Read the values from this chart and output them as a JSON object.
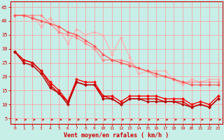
{
  "xlabel": "Vent moyen/en rafales ( km/h )",
  "xlim": [
    -0.5,
    23.5
  ],
  "ylim": [
    3,
    47
  ],
  "xticks": [
    0,
    1,
    2,
    3,
    4,
    5,
    6,
    7,
    8,
    9,
    10,
    11,
    12,
    13,
    14,
    15,
    16,
    17,
    18,
    19,
    20,
    21,
    22,
    23
  ],
  "yticks": [
    5,
    10,
    15,
    20,
    25,
    30,
    35,
    40,
    45
  ],
  "bg_color": "#c8eee8",
  "grid_color": "#ff9999",
  "series": [
    {
      "color": "#ffaaaa",
      "ms": 2.5,
      "lw": 0.8,
      "data_x": [
        0,
        1,
        2,
        3,
        4,
        5,
        6,
        7,
        8,
        9,
        10,
        11,
        12,
        13,
        14,
        15,
        16,
        17,
        18,
        19,
        20,
        21,
        22,
        23
      ],
      "data_y": [
        42,
        42,
        42,
        38,
        41,
        37,
        32,
        37,
        35,
        36,
        35,
        28,
        34,
        27,
        21,
        22,
        22,
        22,
        19,
        17,
        19,
        18,
        19,
        19
      ]
    },
    {
      "color": "#ff8888",
      "ms": 2.5,
      "lw": 0.8,
      "data_x": [
        0,
        1,
        2,
        3,
        4,
        5,
        6,
        7,
        8,
        9,
        10,
        11,
        12,
        13,
        14,
        15,
        16,
        17,
        18,
        19,
        20,
        21,
        22,
        23
      ],
      "data_y": [
        42,
        42,
        42,
        42,
        39,
        36,
        35,
        34,
        32,
        30,
        26,
        26,
        26,
        25,
        23,
        22,
        20,
        20,
        19,
        18,
        18,
        18,
        18,
        18
      ]
    },
    {
      "color": "#ff5555",
      "ms": 2.5,
      "lw": 0.9,
      "data_x": [
        0,
        1,
        2,
        3,
        4,
        5,
        6,
        7,
        8,
        9,
        10,
        11,
        12,
        13,
        14,
        15,
        16,
        17,
        18,
        19,
        20,
        21,
        22,
        23
      ],
      "data_y": [
        42,
        42,
        41,
        40,
        39,
        38,
        36,
        35,
        33,
        31,
        28,
        26,
        25,
        24,
        23,
        22,
        21,
        20,
        19,
        18,
        17,
        17,
        17,
        17
      ]
    },
    {
      "color": "#ff0000",
      "ms": 2.5,
      "lw": 1.0,
      "data_x": [
        0,
        1,
        2,
        3,
        4,
        5,
        6,
        7,
        8,
        9,
        10,
        11,
        12,
        13,
        14,
        15,
        16,
        17,
        18,
        19,
        20,
        21,
        22,
        23
      ],
      "data_y": [
        29,
        26,
        25,
        22,
        18,
        15,
        11,
        19,
        18,
        18,
        13,
        13,
        11,
        13,
        13,
        13,
        13,
        12,
        12,
        12,
        10,
        11,
        10,
        13
      ]
    },
    {
      "color": "#dd0000",
      "ms": 2.5,
      "lw": 1.0,
      "data_x": [
        0,
        1,
        2,
        3,
        4,
        5,
        6,
        7,
        8,
        9,
        10,
        11,
        12,
        13,
        14,
        15,
        16,
        17,
        18,
        19,
        20,
        21,
        22,
        23
      ],
      "data_y": [
        29,
        26,
        25,
        22,
        17,
        14,
        11,
        18,
        17,
        17,
        13,
        12,
        10,
        12,
        12,
        12,
        12,
        11,
        11,
        11,
        9,
        10,
        9,
        12
      ]
    },
    {
      "color": "#bb0000",
      "ms": 2.5,
      "lw": 1.0,
      "data_x": [
        0,
        1,
        2,
        3,
        4,
        5,
        6,
        7,
        8,
        9,
        10,
        11,
        12,
        13,
        14,
        15,
        16,
        17,
        18,
        19,
        20,
        21,
        22,
        23
      ],
      "data_y": [
        29,
        25,
        24,
        21,
        16,
        14,
        10,
        18,
        17,
        17,
        12,
        12,
        10,
        12,
        12,
        11,
        11,
        11,
        11,
        10,
        9,
        10,
        9,
        12
      ]
    }
  ],
  "label_color": "#cc0000",
  "tick_color": "#cc0000",
  "spine_color": "#cc0000"
}
